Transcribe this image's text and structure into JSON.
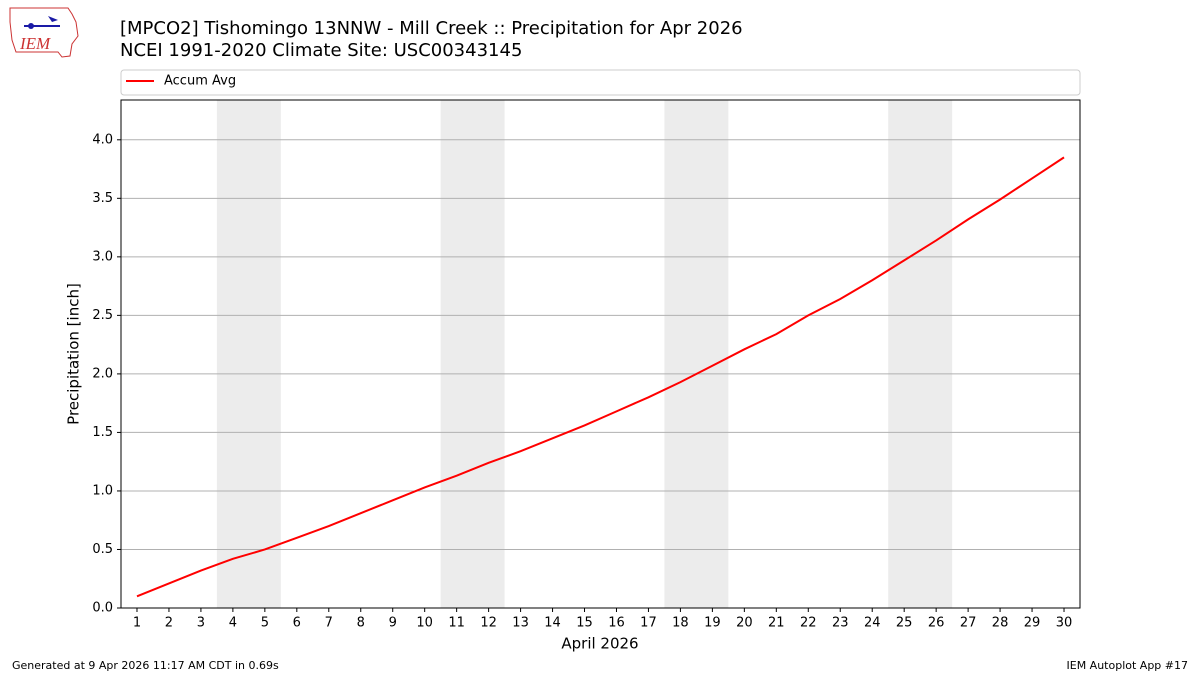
{
  "logo_text": "IEM",
  "chart_data": {
    "type": "line",
    "title": "[MPCO2] Tishomingo 13NNW - Mill Creek :: Precipitation for Apr 2026",
    "subtitle": "NCEI 1991-2020 Climate Site: USC00343145",
    "x_label": "April 2026",
    "y_label": "Precipitation [inch]",
    "x": [
      1,
      2,
      3,
      4,
      5,
      6,
      7,
      8,
      9,
      10,
      11,
      12,
      13,
      14,
      15,
      16,
      17,
      18,
      19,
      20,
      21,
      22,
      23,
      24,
      25,
      26,
      27,
      28,
      29,
      30
    ],
    "series": [
      {
        "name": "Accum Avg",
        "color": "#ff0000",
        "values": [
          0.1,
          0.21,
          0.32,
          0.42,
          0.5,
          0.6,
          0.7,
          0.81,
          0.92,
          1.03,
          1.13,
          1.24,
          1.34,
          1.45,
          1.56,
          1.68,
          1.8,
          1.93,
          2.07,
          2.21,
          2.34,
          2.5,
          2.64,
          2.8,
          2.97,
          3.14,
          3.32,
          3.49,
          3.67,
          3.85
        ]
      }
    ],
    "shaded_ranges": [
      [
        3.5,
        5.5
      ],
      [
        10.5,
        12.5
      ],
      [
        17.5,
        19.5
      ],
      [
        24.5,
        26.5
      ]
    ],
    "shade_color": "#ececec",
    "xlim": [
      0.5,
      30.5
    ],
    "xticks": [
      1,
      2,
      3,
      4,
      5,
      6,
      7,
      8,
      9,
      10,
      11,
      12,
      13,
      14,
      15,
      16,
      17,
      18,
      19,
      20,
      21,
      22,
      23,
      24,
      25,
      26,
      27,
      28,
      29,
      30
    ],
    "ylim": [
      0,
      4.34
    ],
    "yticks": [
      {
        "value": 0,
        "label": "0.0"
      },
      {
        "value": 0.5,
        "label": "0.5"
      },
      {
        "value": 1,
        "label": "1.0"
      },
      {
        "value": 1.5,
        "label": "1.5"
      },
      {
        "value": 2,
        "label": "2.0"
      },
      {
        "value": 2.5,
        "label": "2.5"
      },
      {
        "value": 3,
        "label": "3.0"
      },
      {
        "value": 3.5,
        "label": "3.5"
      },
      {
        "value": 4,
        "label": "4.0"
      }
    ],
    "grid": true,
    "legend": "top",
    "footer_left": "Generated at 9 Apr 2026 11:17 AM CDT in 0.69s",
    "footer_right": "IEM Autoplot App #17"
  }
}
